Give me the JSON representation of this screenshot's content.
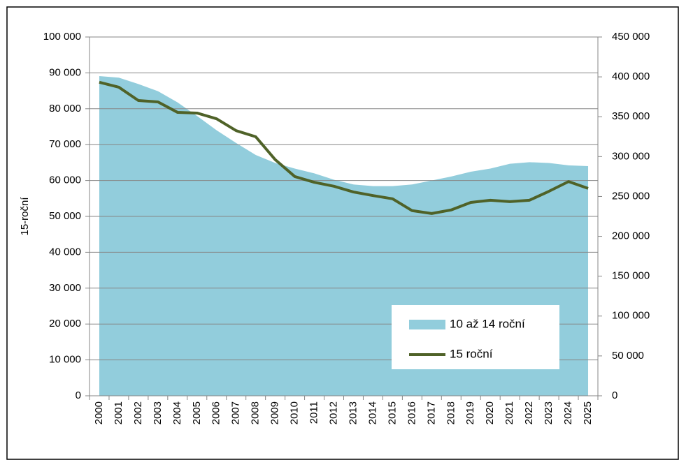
{
  "chart_data": {
    "type": "area_line",
    "y_label": "15-roční",
    "categories": [
      "2000",
      "2001",
      "2002",
      "2003",
      "2004",
      "2005",
      "2006",
      "2007",
      "2008",
      "2009",
      "2010",
      "2011",
      "2012",
      "2013",
      "2014",
      "2015",
      "2016",
      "2017",
      "2018",
      "2019",
      "2020",
      "2021",
      "2022",
      "2023",
      "2024",
      "2025"
    ],
    "series": [
      {
        "name": "10 až 14 roční",
        "color": "#92cddc",
        "axis": "y2",
        "kind": "area",
        "values": [
          401000,
          399000,
          391000,
          382000,
          368000,
          351000,
          333000,
          317000,
          302000,
          292000,
          285000,
          279000,
          271000,
          265000,
          263000,
          263000,
          265000,
          270000,
          275000,
          281000,
          285000,
          291000,
          293000,
          292000,
          289000,
          288000
        ]
      },
      {
        "name": "15 roční",
        "color": "#4f6228",
        "axis": "y",
        "kind": "line",
        "values": [
          87400,
          86000,
          82300,
          81900,
          79000,
          78800,
          77200,
          73900,
          72200,
          65800,
          61100,
          59500,
          58400,
          56800,
          55800,
          54900,
          51600,
          50800,
          51800,
          53900,
          54500,
          54100,
          54500,
          57000,
          59700,
          57800
        ]
      }
    ],
    "ylim": [
      0,
      100000
    ],
    "yticks": [
      0,
      {
        "value": 10000,
        "label": "10 000"
      },
      {
        "value": 20000,
        "label": "20 000"
      },
      {
        "value": 30000,
        "label": "30 000"
      },
      {
        "value": 40000,
        "label": "40 000"
      },
      {
        "value": 50000,
        "label": "50 000"
      },
      {
        "value": 60000,
        "label": "60 000"
      },
      {
        "value": 70000,
        "label": "70 000"
      },
      {
        "value": 80000,
        "label": "80 000"
      },
      {
        "value": 90000,
        "label": "90 000"
      },
      {
        "value": 100000,
        "label": "100 000"
      }
    ],
    "y2lim": [
      0,
      450000
    ],
    "y2ticks": [
      0,
      {
        "value": 50000,
        "label": "50 000"
      },
      {
        "value": 100000,
        "label": "100 000"
      },
      {
        "value": 150000,
        "label": "150 000"
      },
      {
        "value": 200000,
        "label": "200 000"
      },
      {
        "value": 250000,
        "label": "250 000"
      },
      {
        "value": 300000,
        "label": "300 000"
      },
      {
        "value": 350000,
        "label": "350 000"
      },
      {
        "value": 400000,
        "label": "400 000"
      },
      {
        "value": 450000,
        "label": "450 000"
      }
    ],
    "grid": true
  }
}
